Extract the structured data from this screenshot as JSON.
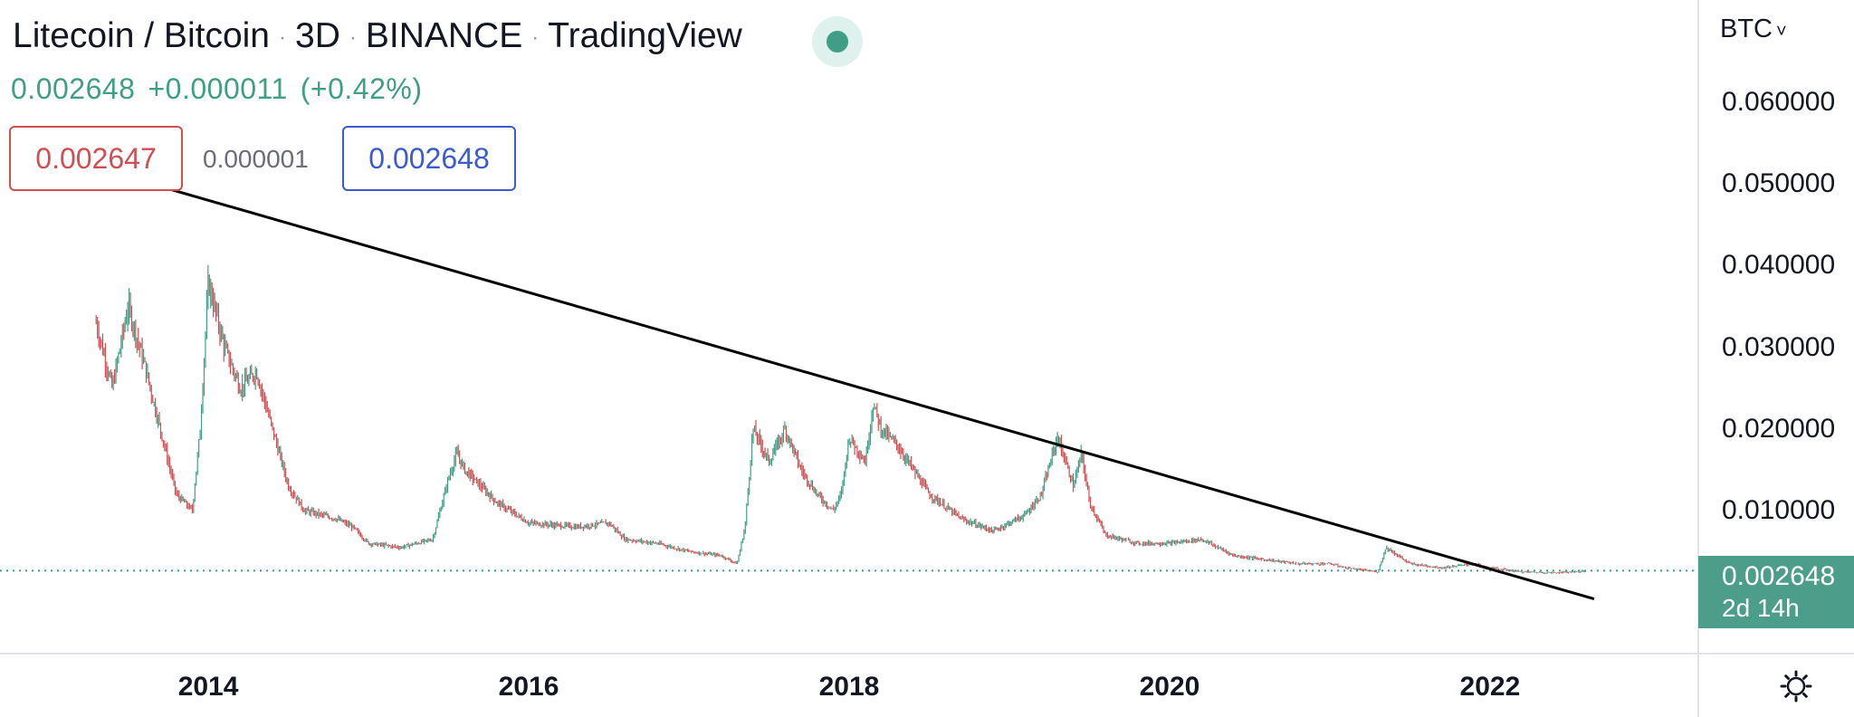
{
  "header": {
    "symbol": "Litecoin / Bitcoin",
    "interval": "3D",
    "exchange": "BINANCE",
    "source": "TradingView"
  },
  "quote": {
    "last": "0.002648",
    "change": "+0.000011",
    "change_pct": "(+0.42%)"
  },
  "order": {
    "sell": "0.002647",
    "spread": "0.000001",
    "buy": "0.002648"
  },
  "axis": {
    "currency": "BTC"
  },
  "price_tag": {
    "price": "0.002648",
    "countdown": "2d 14h"
  },
  "colors": {
    "up": "#3f9e85",
    "down": "#d14e53",
    "sell": "#d14e53",
    "buy": "#3d5ad0",
    "trendline": "#000000",
    "price_tag": "#4c9e8a"
  },
  "icons": {
    "live": "live-status-dot",
    "currency_menu": "chevron-down-icon",
    "settings": "gear-icon"
  },
  "chart_data": {
    "type": "candlestick",
    "x_axis": {
      "min": 2012.7,
      "max": 2023.3,
      "tick_values": [
        2014,
        2016,
        2018,
        2020,
        2022
      ],
      "tick_labels": [
        "2014",
        "2016",
        "2018",
        "2020",
        "2022"
      ]
    },
    "y_axis": {
      "min": -0.0075,
      "max": 0.0725,
      "tick_values": [
        0.06,
        0.05,
        0.04,
        0.03,
        0.02,
        0.01
      ],
      "tick_labels": [
        "0.060000",
        "0.050000",
        "0.040000",
        "0.030000",
        "0.020000",
        "0.010000"
      ],
      "side": "right"
    },
    "close_line": {
      "value": 0.002648
    },
    "trendline": {
      "start": [
        2013.2,
        0.0525
      ],
      "end": [
        2022.65,
        -0.0008
      ]
    },
    "series": [
      {
        "x": [
          2013.3,
          2013.4,
          2013.5,
          2013.6,
          2013.7,
          2013.8,
          2013.9,
          2013.95,
          2014.0,
          2014.1,
          2014.2,
          2014.3,
          2014.4,
          2014.5,
          2014.6,
          2014.8,
          2014.9,
          2015.0,
          2015.2,
          2015.4,
          2015.5,
          2015.55,
          2015.6,
          2015.8,
          2016.0,
          2016.3,
          2016.5,
          2016.6,
          2016.8,
          2017.0,
          2017.2,
          2017.3,
          2017.35,
          2017.4,
          2017.5,
          2017.6,
          2017.7,
          2017.8,
          2017.9,
          2017.95,
          2018.0,
          2018.1,
          2018.15,
          2018.2,
          2018.3,
          2018.5,
          2018.7,
          2018.9,
          2019.1,
          2019.2,
          2019.3,
          2019.4,
          2019.45,
          2019.5,
          2019.6,
          2019.8,
          2020.0,
          2020.2,
          2020.4,
          2020.6,
          2020.8,
          2021.0,
          2021.1,
          2021.3,
          2021.35,
          2021.5,
          2021.7,
          2021.9,
          2022.0,
          2022.2,
          2022.4,
          2022.5,
          2022.6
        ],
        "y": [
          0.033,
          0.025,
          0.035,
          0.028,
          0.02,
          0.012,
          0.01,
          0.02,
          0.038,
          0.03,
          0.025,
          0.027,
          0.02,
          0.013,
          0.01,
          0.009,
          0.008,
          0.006,
          0.0055,
          0.0065,
          0.014,
          0.017,
          0.015,
          0.011,
          0.0085,
          0.008,
          0.0085,
          0.0065,
          0.006,
          0.005,
          0.0045,
          0.0035,
          0.008,
          0.02,
          0.016,
          0.02,
          0.015,
          0.012,
          0.01,
          0.012,
          0.019,
          0.016,
          0.023,
          0.02,
          0.018,
          0.012,
          0.009,
          0.0075,
          0.0095,
          0.012,
          0.019,
          0.013,
          0.017,
          0.011,
          0.007,
          0.006,
          0.006,
          0.0065,
          0.0045,
          0.004,
          0.0035,
          0.0035,
          0.003,
          0.0025,
          0.0055,
          0.0035,
          0.003,
          0.0035,
          0.003,
          0.0025,
          0.0024,
          0.0025,
          0.0026
        ]
      }
    ]
  }
}
